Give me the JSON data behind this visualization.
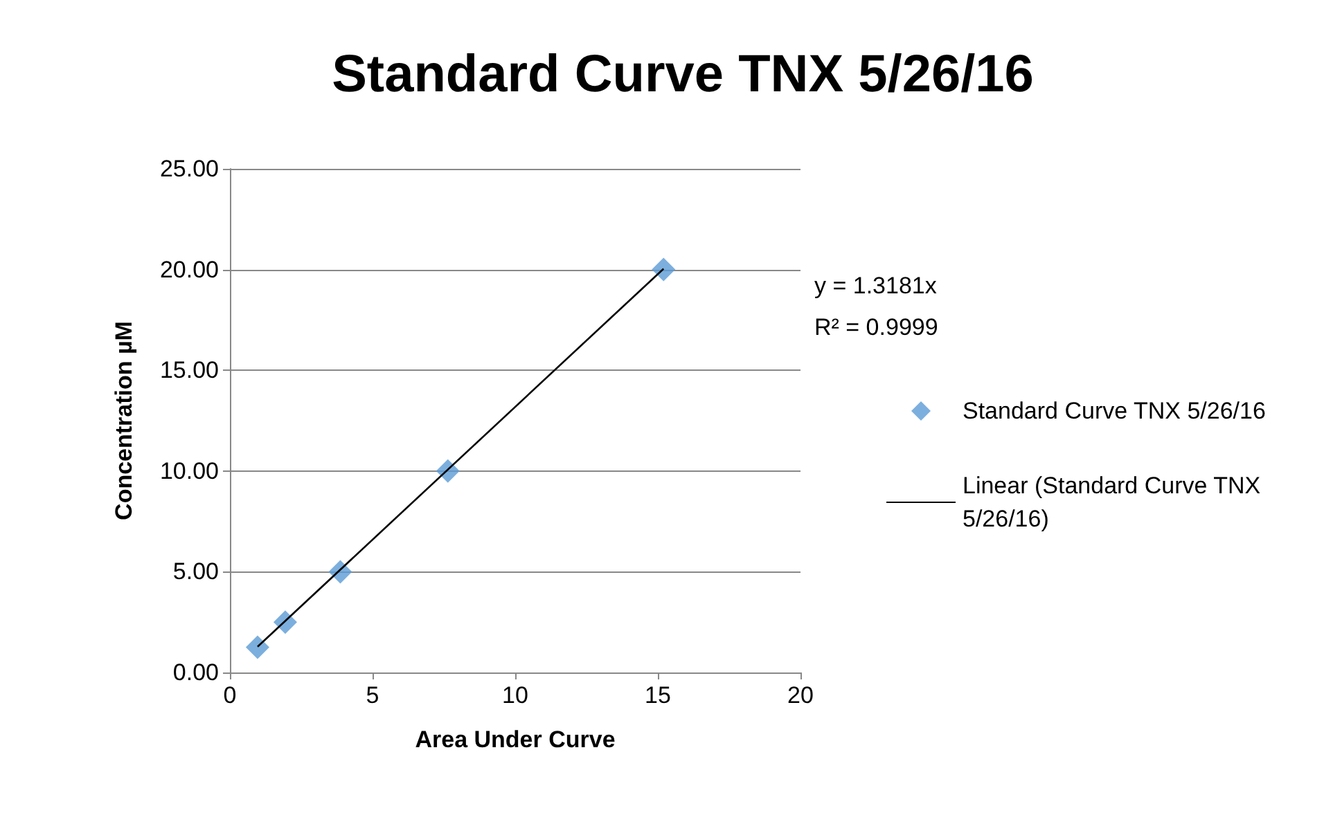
{
  "chart_data": {
    "type": "scatter",
    "title": "Standard Curve TNX 5/26/16",
    "xlabel": "Area Under Curve",
    "ylabel": "Concentration µM",
    "series": [
      {
        "name": "Standard Curve TNX 5/26/16",
        "color": "#5b9bd5",
        "marker": "diamond",
        "x": [
          0.97,
          1.94,
          3.87,
          7.64,
          15.2
        ],
        "values": [
          1.25,
          2.5,
          5,
          10,
          20
        ]
      },
      {
        "name": "Linear (Standard Curve TNX 5/26/16)",
        "type": "line",
        "color": "#000000",
        "marker": "none",
        "line_style": "solid",
        "x": [
          0.97,
          15.2
        ],
        "values": [
          1.28,
          20.04
        ]
      }
    ],
    "annotations": [
      "y = 1.3181x",
      "R² = 0.9999"
    ],
    "xlim": [
      0,
      20
    ],
    "xticks": [
      0,
      5,
      10,
      15,
      20
    ],
    "ylim": [
      0,
      25
    ],
    "yticks": [
      {
        "value": 0,
        "label": "0.00"
      },
      {
        "value": 5,
        "label": "5.00"
      },
      {
        "value": 10,
        "label": "10.00"
      },
      {
        "value": 15,
        "label": "15.00"
      },
      {
        "value": 20,
        "label": "20.00"
      },
      {
        "value": 25,
        "label": "25.00"
      }
    ],
    "grid": "y",
    "legend": "right"
  }
}
